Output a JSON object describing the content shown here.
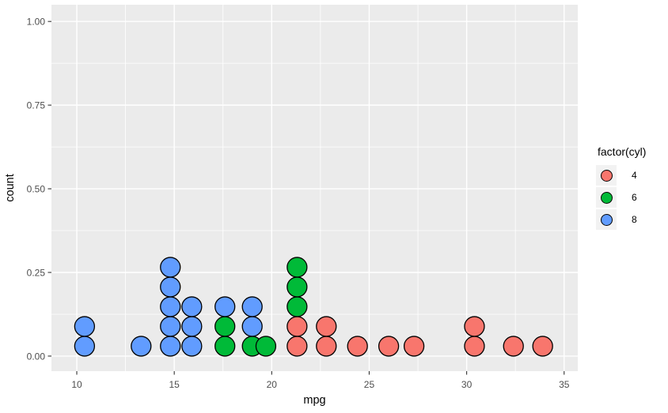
{
  "figure": {
    "background": "#FFFFFF",
    "panel_background": "#EBEBEB",
    "grid_color": "#FFFFFF",
    "axis_text_color": "#4D4D4D",
    "axis_tick_color": "#333333",
    "axis_title_color": "#000000",
    "legend_key_background": "#F2F2F2",
    "dot_outline": "#000000"
  },
  "chart_data": {
    "type": "dotplot",
    "title": "",
    "xlabel": "mpg",
    "ylabel": "count",
    "x_ticks": [
      10,
      15,
      20,
      25,
      30,
      35
    ],
    "y_ticks": [
      0,
      0.25,
      0.5,
      0.75,
      1
    ],
    "y_tick_labels": [
      "0.00",
      "0.25",
      "0.50",
      "0.75",
      "1.00"
    ],
    "xlim": [
      8.7,
      35.7
    ],
    "ylim": [
      -0.045,
      1.05
    ],
    "grid": true,
    "legend": {
      "title": "factor(cyl)",
      "position": "right",
      "entries": [
        {
          "label": "4",
          "color": "#F8766D"
        },
        {
          "label": "6",
          "color": "#00BA38"
        },
        {
          "label": "8",
          "color": "#619CFF"
        }
      ]
    },
    "stacks": [
      {
        "mpg": 10.4,
        "dots_bottom_to_top": [
          "8",
          "8"
        ]
      },
      {
        "mpg": 13.3,
        "dots_bottom_to_top": [
          "8"
        ]
      },
      {
        "mpg": 14.8,
        "dots_bottom_to_top": [
          "8",
          "8",
          "8",
          "8",
          "8"
        ]
      },
      {
        "mpg": 15.9,
        "dots_bottom_to_top": [
          "8",
          "8",
          "8"
        ]
      },
      {
        "mpg": 17.6,
        "dots_bottom_to_top": [
          "6",
          "6",
          "8"
        ]
      },
      {
        "mpg": 19.0,
        "dots_bottom_to_top": [
          "6",
          "8",
          "8"
        ]
      },
      {
        "mpg": 19.7,
        "dots_bottom_to_top": [
          "6"
        ]
      },
      {
        "mpg": 21.3,
        "dots_bottom_to_top": [
          "4",
          "4",
          "6",
          "6",
          "6"
        ]
      },
      {
        "mpg": 22.8,
        "dots_bottom_to_top": [
          "4",
          "4"
        ]
      },
      {
        "mpg": 24.4,
        "dots_bottom_to_top": [
          "4"
        ]
      },
      {
        "mpg": 26.0,
        "dots_bottom_to_top": [
          "4"
        ]
      },
      {
        "mpg": 27.3,
        "dots_bottom_to_top": [
          "4"
        ]
      },
      {
        "mpg": 30.4,
        "dots_bottom_to_top": [
          "4",
          "4"
        ]
      },
      {
        "mpg": 32.4,
        "dots_bottom_to_top": [
          "4"
        ]
      },
      {
        "mpg": 33.9,
        "dots_bottom_to_top": [
          "4"
        ]
      }
    ],
    "total_points": 32
  }
}
